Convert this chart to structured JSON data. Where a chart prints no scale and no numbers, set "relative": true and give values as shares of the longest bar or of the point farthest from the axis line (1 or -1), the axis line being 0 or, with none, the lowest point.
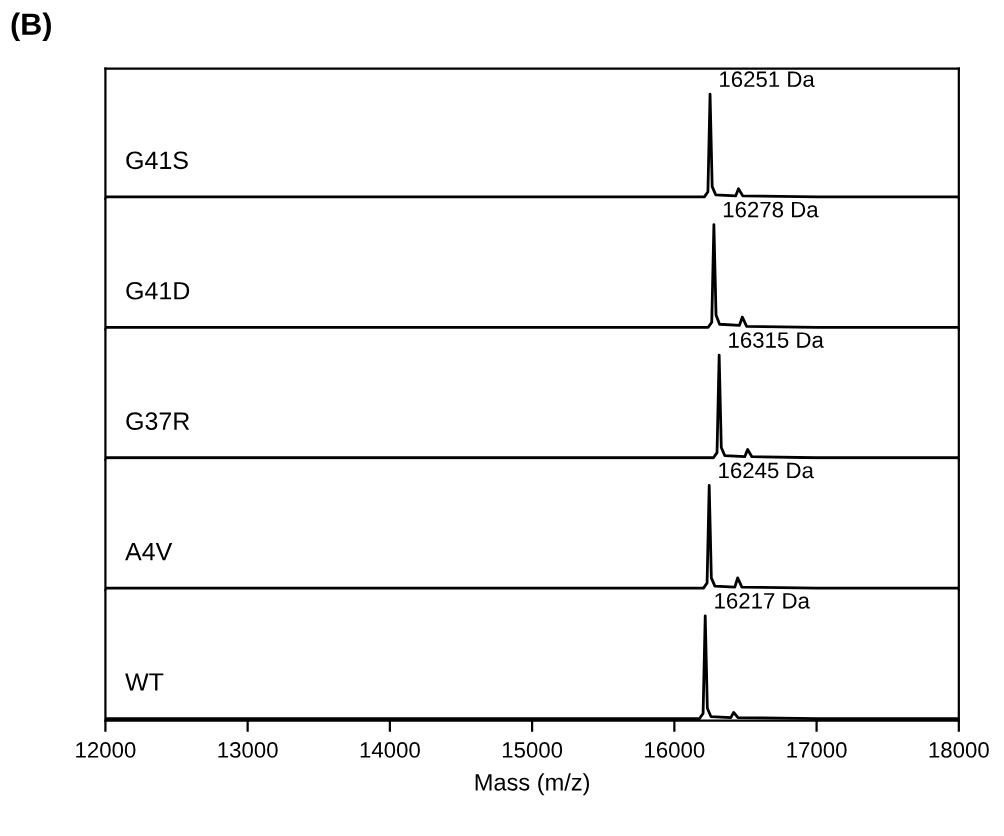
{
  "chart_data": [
    {
      "type": "line",
      "title": "(B)",
      "relative": true,
      "xlim": [
        12000,
        18000
      ],
      "xticks": [
        12000,
        13000,
        14000,
        15000,
        16000,
        17000,
        18000
      ],
      "tick_labels": false,
      "legend": false,
      "marker": "none",
      "line_style": "solid",
      "series": [
        {
          "name": "G41S",
          "color": "#000000",
          "x": [
            12000,
            14000,
            16000,
            16211,
            16236,
            16251,
            16266,
            16291,
            16431,
            16451,
            16481,
            17000,
            18000
          ],
          "values": [
            0,
            0,
            0,
            0,
            0.05,
            1,
            0.1,
            0.02,
            0.01,
            0.08,
            0.01,
            0,
            0
          ]
        }
      ],
      "annotations": [
        {
          "text": "16251 Da",
          "x": 16251,
          "y": 1
        }
      ]
    },
    {
      "type": "line",
      "relative": true,
      "xlim": [
        12000,
        18000
      ],
      "xticks": [
        12000,
        13000,
        14000,
        15000,
        16000,
        17000,
        18000
      ],
      "tick_labels": false,
      "legend": false,
      "marker": "none",
      "line_style": "solid",
      "series": [
        {
          "name": "G41D",
          "color": "#000000",
          "x": [
            12000,
            14000,
            16000,
            16238,
            16263,
            16278,
            16293,
            16318,
            16458,
            16478,
            16508,
            17000,
            18000
          ],
          "values": [
            0,
            0,
            0,
            0,
            0.05,
            1,
            0.12,
            0.03,
            0.02,
            0.1,
            0.01,
            0,
            0
          ]
        }
      ],
      "annotations": [
        {
          "text": "16278 Da",
          "x": 16278,
          "y": 1
        }
      ]
    },
    {
      "type": "line",
      "relative": true,
      "xlim": [
        12000,
        18000
      ],
      "xticks": [
        12000,
        13000,
        14000,
        15000,
        16000,
        17000,
        18000
      ],
      "tick_labels": false,
      "legend": false,
      "marker": "none",
      "line_style": "solid",
      "series": [
        {
          "name": "G37R",
          "color": "#000000",
          "x": [
            12000,
            14000,
            16000,
            16275,
            16300,
            16315,
            16330,
            16355,
            16495,
            16515,
            16545,
            17000,
            18000
          ],
          "values": [
            0,
            0,
            0,
            0,
            0.05,
            1,
            0.1,
            0.02,
            0.01,
            0.08,
            0.01,
            0,
            0
          ]
        }
      ],
      "annotations": [
        {
          "text": "16315 Da",
          "x": 16315,
          "y": 1
        }
      ]
    },
    {
      "type": "line",
      "relative": true,
      "xlim": [
        12000,
        18000
      ],
      "xticks": [
        12000,
        13000,
        14000,
        15000,
        16000,
        17000,
        18000
      ],
      "tick_labels": false,
      "legend": false,
      "marker": "none",
      "line_style": "solid",
      "series": [
        {
          "name": "A4V",
          "color": "#000000",
          "x": [
            12000,
            14000,
            16000,
            16205,
            16230,
            16245,
            16260,
            16285,
            16425,
            16445,
            16475,
            17000,
            18000
          ],
          "values": [
            0,
            0,
            0,
            0,
            0.05,
            1,
            0.1,
            0.02,
            0.01,
            0.1,
            0.01,
            0,
            0
          ]
        }
      ],
      "annotations": [
        {
          "text": "16245 Da",
          "x": 16245,
          "y": 1
        }
      ]
    },
    {
      "type": "line",
      "relative": true,
      "xlabel": "Mass (m/z)",
      "xlim": [
        12000,
        18000
      ],
      "xticks": [
        12000,
        13000,
        14000,
        15000,
        16000,
        17000,
        18000
      ],
      "tick_labels": "x",
      "legend": false,
      "marker": "none",
      "line_style": "solid",
      "series": [
        {
          "name": "WT",
          "color": "#000000",
          "x": [
            12000,
            14000,
            16000,
            16177,
            16202,
            16217,
            16232,
            16257,
            16397,
            16417,
            16447,
            17000,
            18000
          ],
          "values": [
            0,
            0,
            0,
            0,
            0.05,
            1,
            0.1,
            0.02,
            0.01,
            0.06,
            0.01,
            0,
            0
          ]
        }
      ],
      "annotations": [
        {
          "text": "16217 Da",
          "x": 16217,
          "y": 1
        }
      ]
    }
  ]
}
